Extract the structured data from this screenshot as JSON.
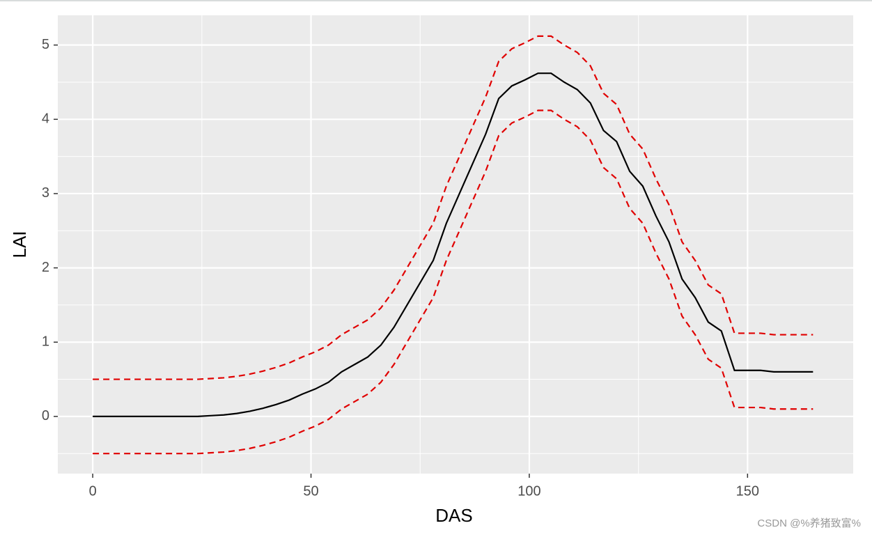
{
  "chart_data": {
    "type": "line",
    "x_label": "DAS",
    "y_label": "LAI",
    "x": [
      0,
      3,
      6,
      9,
      12,
      15,
      18,
      21,
      24,
      27,
      30,
      33,
      36,
      39,
      42,
      45,
      48,
      51,
      54,
      57,
      60,
      63,
      66,
      69,
      72,
      75,
      78,
      81,
      84,
      87,
      90,
      93,
      96,
      99,
      102,
      105,
      108,
      111,
      114,
      117,
      120,
      123,
      126,
      129,
      132,
      135,
      138,
      141,
      144,
      147,
      150,
      153,
      156,
      159,
      162,
      165
    ],
    "series": [
      {
        "color": "#000000",
        "dashed": false,
        "values": [
          0,
          0,
          0,
          0,
          0,
          0,
          0,
          0,
          0,
          0.01,
          0.02,
          0.04,
          0.07,
          0.11,
          0.16,
          0.22,
          0.3,
          0.37,
          0.46,
          0.6,
          0.7,
          0.8,
          0.96,
          1.2,
          1.5,
          1.8,
          2.1,
          2.6,
          3.0,
          3.4,
          3.8,
          4.28,
          4.45,
          4.53,
          4.62,
          4.62,
          4.5,
          4.4,
          4.22,
          3.85,
          3.7,
          3.3,
          3.1,
          2.7,
          2.35,
          1.85,
          1.6,
          1.27,
          1.15,
          0.62,
          0.62,
          0.62,
          0.6,
          0.6,
          0.6,
          0.6
        ]
      },
      {
        "color": "#e00000",
        "dashed": true,
        "values": [
          0.5,
          0.5,
          0.5,
          0.5,
          0.5,
          0.5,
          0.5,
          0.5,
          0.5,
          0.51,
          0.52,
          0.54,
          0.57,
          0.61,
          0.66,
          0.72,
          0.8,
          0.87,
          0.96,
          1.1,
          1.2,
          1.3,
          1.46,
          1.7,
          2.0,
          2.3,
          2.6,
          3.1,
          3.5,
          3.9,
          4.3,
          4.78,
          4.95,
          5.03,
          5.12,
          5.12,
          5.0,
          4.9,
          4.72,
          4.35,
          4.2,
          3.8,
          3.6,
          3.2,
          2.85,
          2.35,
          2.1,
          1.77,
          1.65,
          1.12,
          1.12,
          1.12,
          1.1,
          1.1,
          1.1,
          1.1
        ]
      },
      {
        "color": "#e00000",
        "dashed": true,
        "values": [
          -0.5,
          -0.5,
          -0.5,
          -0.5,
          -0.5,
          -0.5,
          -0.5,
          -0.5,
          -0.5,
          -0.49,
          -0.48,
          -0.46,
          -0.43,
          -0.39,
          -0.34,
          -0.28,
          -0.2,
          -0.13,
          -0.04,
          0.1,
          0.2,
          0.3,
          0.46,
          0.7,
          1.0,
          1.3,
          1.6,
          2.1,
          2.5,
          2.9,
          3.3,
          3.78,
          3.95,
          4.03,
          4.12,
          4.12,
          4.0,
          3.9,
          3.72,
          3.35,
          3.2,
          2.8,
          2.6,
          2.2,
          1.85,
          1.35,
          1.1,
          0.77,
          0.65,
          0.12,
          0.12,
          0.12,
          0.1,
          0.1,
          0.1,
          0.1
        ]
      }
    ],
    "xlim": [
      -8,
      174.2
    ],
    "xticks": [
      0,
      50,
      100,
      150
    ],
    "ylim": [
      -0.77,
      5.4
    ],
    "yticks": [
      0,
      1,
      2,
      3,
      4,
      5
    ],
    "grid": true,
    "panel_color": "#ebebeb",
    "watermark": "CSDN @%养猪致富%"
  }
}
